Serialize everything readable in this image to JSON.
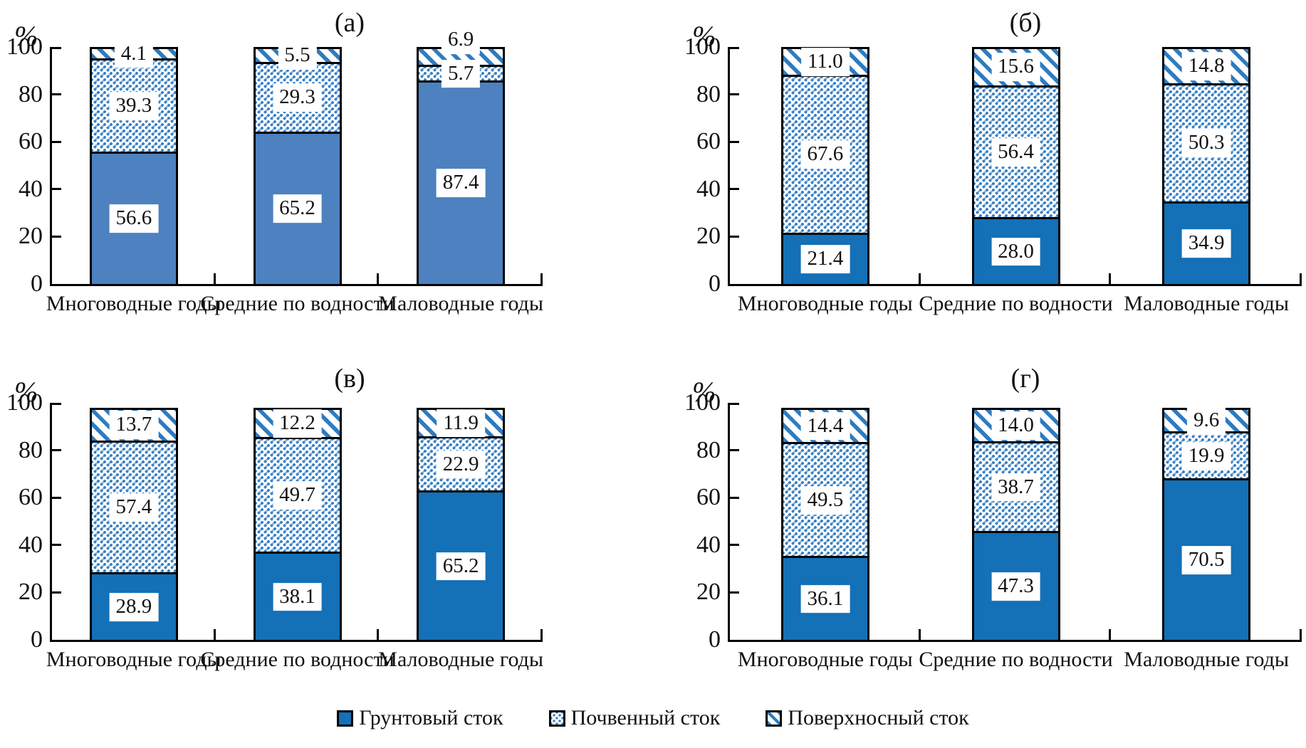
{
  "figure": {
    "background": "#ffffff"
  },
  "colors": {
    "solid_fill_panel_a": "#4d81bf",
    "solid_fill": "#1470b7",
    "pattern_blue": "#3b81c4",
    "hatch_blue": "#2e7bc0",
    "axis": "#000000",
    "label_box": "#ffffff"
  },
  "legend": {
    "items": [
      {
        "label": "Грунтовый сток",
        "pattern": "solid"
      },
      {
        "label": "Почвенный сток",
        "pattern": "dots"
      },
      {
        "label": "Поверхносный сток",
        "pattern": "hatch"
      }
    ]
  },
  "chart_data": [
    {
      "type": "bar",
      "stacked": true,
      "title": "(а)",
      "ylabel": "%",
      "ylim": [
        0,
        100
      ],
      "yticks": [
        0,
        20,
        40,
        60,
        80,
        100
      ],
      "grid": false,
      "legend_position": "bottom",
      "categories": [
        "Многоводные годы",
        "Средние по водности",
        "Маловодные годы"
      ],
      "series": [
        {
          "name": "Грунтовый сток",
          "pattern": "solid",
          "values": [
            56.6,
            65.2,
            87.4
          ],
          "labels": [
            "56.6",
            "65.2",
            "87.4"
          ]
        },
        {
          "name": "Почвенный сток",
          "pattern": "dots",
          "values": [
            39.3,
            29.3,
            5.7
          ],
          "labels": [
            "39.3",
            "29.3",
            "5.7"
          ]
        },
        {
          "name": "Поверхносный сток",
          "pattern": "hatch",
          "values": [
            4.1,
            5.5,
            6.9
          ],
          "labels": [
            "4.1",
            "5.5",
            "6.9"
          ]
        }
      ]
    },
    {
      "type": "bar",
      "stacked": true,
      "title": "(б)",
      "ylabel": "%",
      "ylim": [
        0,
        100
      ],
      "yticks": [
        0,
        20,
        40,
        60,
        80,
        100
      ],
      "grid": false,
      "legend_position": "bottom",
      "categories": [
        "Многоводные годы",
        "Средние по водности",
        "Маловодные годы"
      ],
      "series": [
        {
          "name": "Грунтовый сток",
          "pattern": "solid",
          "values": [
            21.4,
            28.0,
            34.9
          ],
          "labels": [
            "21.4",
            "28.0",
            "34.9"
          ]
        },
        {
          "name": "Почвенный сток",
          "pattern": "dots",
          "values": [
            67.6,
            56.4,
            50.3
          ],
          "labels": [
            "67.6",
            "56.4",
            "50.3"
          ]
        },
        {
          "name": "Поверхносный сток",
          "pattern": "hatch",
          "values": [
            11.0,
            15.6,
            14.8
          ],
          "labels": [
            "11.0",
            "15.6",
            "14.8"
          ]
        }
      ]
    },
    {
      "type": "bar",
      "stacked": true,
      "title": "(в)",
      "ylabel": "%",
      "ylim": [
        0,
        100
      ],
      "yticks": [
        0,
        20,
        40,
        60,
        80,
        100
      ],
      "grid": false,
      "legend_position": "bottom",
      "categories": [
        "Многоводные годы",
        "Средние по водности",
        "Маловодные годы"
      ],
      "series": [
        {
          "name": "Грунтовый сток",
          "pattern": "solid",
          "values": [
            28.9,
            38.1,
            65.2
          ],
          "labels": [
            "28.9",
            "38.1",
            "65.2"
          ]
        },
        {
          "name": "Почвенный сток",
          "pattern": "dots",
          "values": [
            57.4,
            49.7,
            22.9
          ],
          "labels": [
            "57.4",
            "49.7",
            "22.9"
          ]
        },
        {
          "name": "Поверхносный сток",
          "pattern": "hatch",
          "values": [
            13.7,
            12.2,
            11.9
          ],
          "labels": [
            "13.7",
            "12.2",
            "11.9"
          ]
        }
      ]
    },
    {
      "type": "bar",
      "stacked": true,
      "title": "(г)",
      "ylabel": "%",
      "ylim": [
        0,
        100
      ],
      "yticks": [
        0,
        20,
        40,
        60,
        80,
        100
      ],
      "grid": false,
      "legend_position": "bottom",
      "categories": [
        "Многоводные годы",
        "Средние по водности",
        "Маловодные годы"
      ],
      "series": [
        {
          "name": "Грунтовый сток",
          "pattern": "solid",
          "values": [
            36.1,
            47.3,
            70.5
          ],
          "labels": [
            "36.1",
            "47.3",
            "70.5"
          ]
        },
        {
          "name": "Почвенный сток",
          "pattern": "dots",
          "values": [
            49.5,
            38.7,
            19.9
          ],
          "labels": [
            "49.5",
            "38.7",
            "19.9"
          ]
        },
        {
          "name": "Поверхносный сток",
          "pattern": "hatch",
          "values": [
            14.4,
            14.0,
            9.6
          ],
          "labels": [
            "14.4",
            "14.0",
            "9.6"
          ]
        }
      ]
    }
  ]
}
